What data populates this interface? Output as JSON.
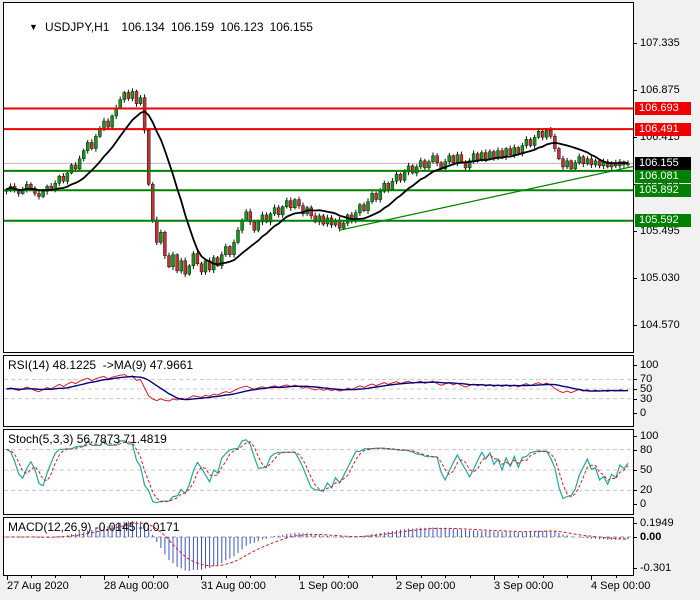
{
  "header": {
    "dropdown_icon": "▼",
    "symbol": "USDJPY,H1",
    "open": "106.134",
    "high": "106.159",
    "low": "106.123",
    "close": "106.155"
  },
  "price_axis": {
    "ticks": [
      "107.335",
      "106.875",
      "106.415",
      "105.955",
      "105.495",
      "105.030",
      "104.570"
    ],
    "price_labels": [
      {
        "text": "106.693",
        "bg": "#ee0000"
      },
      {
        "text": "106.491",
        "bg": "#ee0000"
      },
      {
        "text": "106.155",
        "bg": "#000000"
      },
      {
        "text": "106.081",
        "bg": "#008000"
      },
      {
        "text": "105.892",
        "bg": "#008000"
      },
      {
        "text": "105.592",
        "bg": "#008000"
      }
    ]
  },
  "time_axis": {
    "labels": [
      {
        "text": "27 Aug 2020",
        "bar": 0
      },
      {
        "text": "28 Aug 00:00",
        "bar": 24
      },
      {
        "text": "31 Aug 00:00",
        "bar": 48
      },
      {
        "text": "1 Sep 00:00",
        "bar": 72
      },
      {
        "text": "2 Sep 00:00",
        "bar": 96
      },
      {
        "text": "3 Sep 00:00",
        "bar": 120
      },
      {
        "text": "4 Sep 00:00",
        "bar": 144
      }
    ]
  },
  "chart_data": {
    "type": "candlestick",
    "symbol": "USDJPY",
    "timeframe": "H1",
    "title": "USDJPY,H1 106.134 106.159 106.123 106.155",
    "y_axis": {
      "ticks": [
        107.335,
        106.875,
        106.415,
        105.955,
        105.495,
        105.03,
        104.57
      ]
    },
    "closes": [
      105.9,
      105.93,
      105.89,
      105.86,
      105.9,
      105.95,
      105.91,
      105.86,
      105.83,
      105.88,
      105.93,
      105.9,
      105.96,
      106.03,
      105.98,
      106.06,
      106.14,
      106.1,
      106.2,
      106.28,
      106.36,
      106.3,
      106.42,
      106.5,
      106.57,
      106.51,
      106.62,
      106.7,
      106.78,
      106.85,
      106.79,
      106.86,
      106.74,
      106.8,
      106.48,
      105.95,
      105.6,
      105.38,
      105.48,
      105.25,
      105.14,
      105.26,
      105.1,
      105.2,
      105.07,
      105.15,
      105.27,
      105.17,
      105.09,
      105.2,
      105.11,
      105.23,
      105.15,
      105.26,
      105.34,
      105.26,
      105.38,
      105.5,
      105.6,
      105.68,
      105.58,
      105.5,
      105.58,
      105.65,
      105.58,
      105.66,
      105.72,
      105.65,
      105.73,
      105.79,
      105.72,
      105.8,
      105.74,
      105.66,
      105.72,
      105.64,
      105.58,
      105.64,
      105.56,
      105.62,
      105.55,
      105.6,
      105.52,
      105.57,
      105.65,
      105.59,
      105.67,
      105.75,
      105.69,
      105.78,
      105.86,
      105.8,
      105.88,
      105.96,
      105.9,
      105.98,
      106.05,
      105.99,
      106.07,
      106.13,
      106.06,
      106.12,
      106.18,
      106.11,
      106.17,
      106.23,
      106.16,
      106.1,
      106.17,
      106.23,
      106.16,
      106.24,
      106.17,
      106.11,
      106.18,
      106.25,
      106.19,
      106.26,
      106.2,
      106.27,
      106.21,
      106.28,
      106.22,
      106.3,
      106.24,
      106.31,
      106.25,
      106.33,
      106.39,
      106.33,
      106.41,
      106.47,
      106.41,
      106.48,
      106.42,
      106.3,
      106.2,
      106.12,
      106.18,
      106.1,
      106.16,
      106.22,
      106.15,
      106.2,
      106.14,
      106.18,
      106.13,
      106.17,
      106.12,
      106.16,
      106.13,
      106.17,
      106.14,
      106.155
    ],
    "levels": {
      "resistance": [
        {
          "price": 106.693,
          "color": "#ee0000"
        },
        {
          "price": 106.491,
          "color": "#ee0000"
        }
      ],
      "support": [
        {
          "price": 106.081,
          "color": "#008000"
        },
        {
          "price": 105.892,
          "color": "#008000"
        },
        {
          "price": 105.592,
          "color": "#008000"
        }
      ],
      "current_price": 106.155
    },
    "trendline": {
      "from_bar": 82,
      "from_price": 105.5,
      "to_bar": 156,
      "to_price": 106.14,
      "color": "#008000"
    },
    "ma": {
      "period": 13,
      "color": "#000000"
    },
    "candle_colors": {
      "bull": "#169616",
      "bear": "#c03232",
      "wick": "#111111"
    },
    "indicators": {
      "rsi": {
        "label": "RSI(14) 48.1225  ->MA(9) 47.9661",
        "period": 14,
        "ma_period": 9,
        "value": 48.1225,
        "ma_value": 47.9661,
        "ticks": [
          100,
          70,
          50,
          30,
          0
        ],
        "grid": [
          70,
          50,
          30
        ],
        "line_color": "#d42020",
        "ma_color": "#000080"
      },
      "stoch": {
        "label": "Stoch(5,3,3) 56.7873 71.4819",
        "k": 5,
        "d": 3,
        "slowing": 3,
        "value": 56.7873,
        "signal_value": 71.4819,
        "ticks": [
          100,
          80,
          50,
          20,
          0
        ],
        "grid": [
          80,
          50,
          20
        ],
        "line_color": "#20a8a0",
        "signal_color": "#d42020"
      },
      "macd": {
        "label": "MACD(12,26,9) -0.0145 -0.0171",
        "fast": 12,
        "slow": 26,
        "signal": 9,
        "value": -0.0145,
        "signal_value": -0.0171,
        "ticks": [
          {
            "text": "0.1949",
            "value": 0.1949,
            "bold": false
          },
          {
            "text": "0.00",
            "value": 0,
            "bold": true
          },
          {
            "text": "-0.301",
            "value": -0.301,
            "bold": false
          }
        ],
        "hist_color": "#3c50c8",
        "signal_color": "#d42020",
        "zero_color": "#999999"
      }
    }
  }
}
